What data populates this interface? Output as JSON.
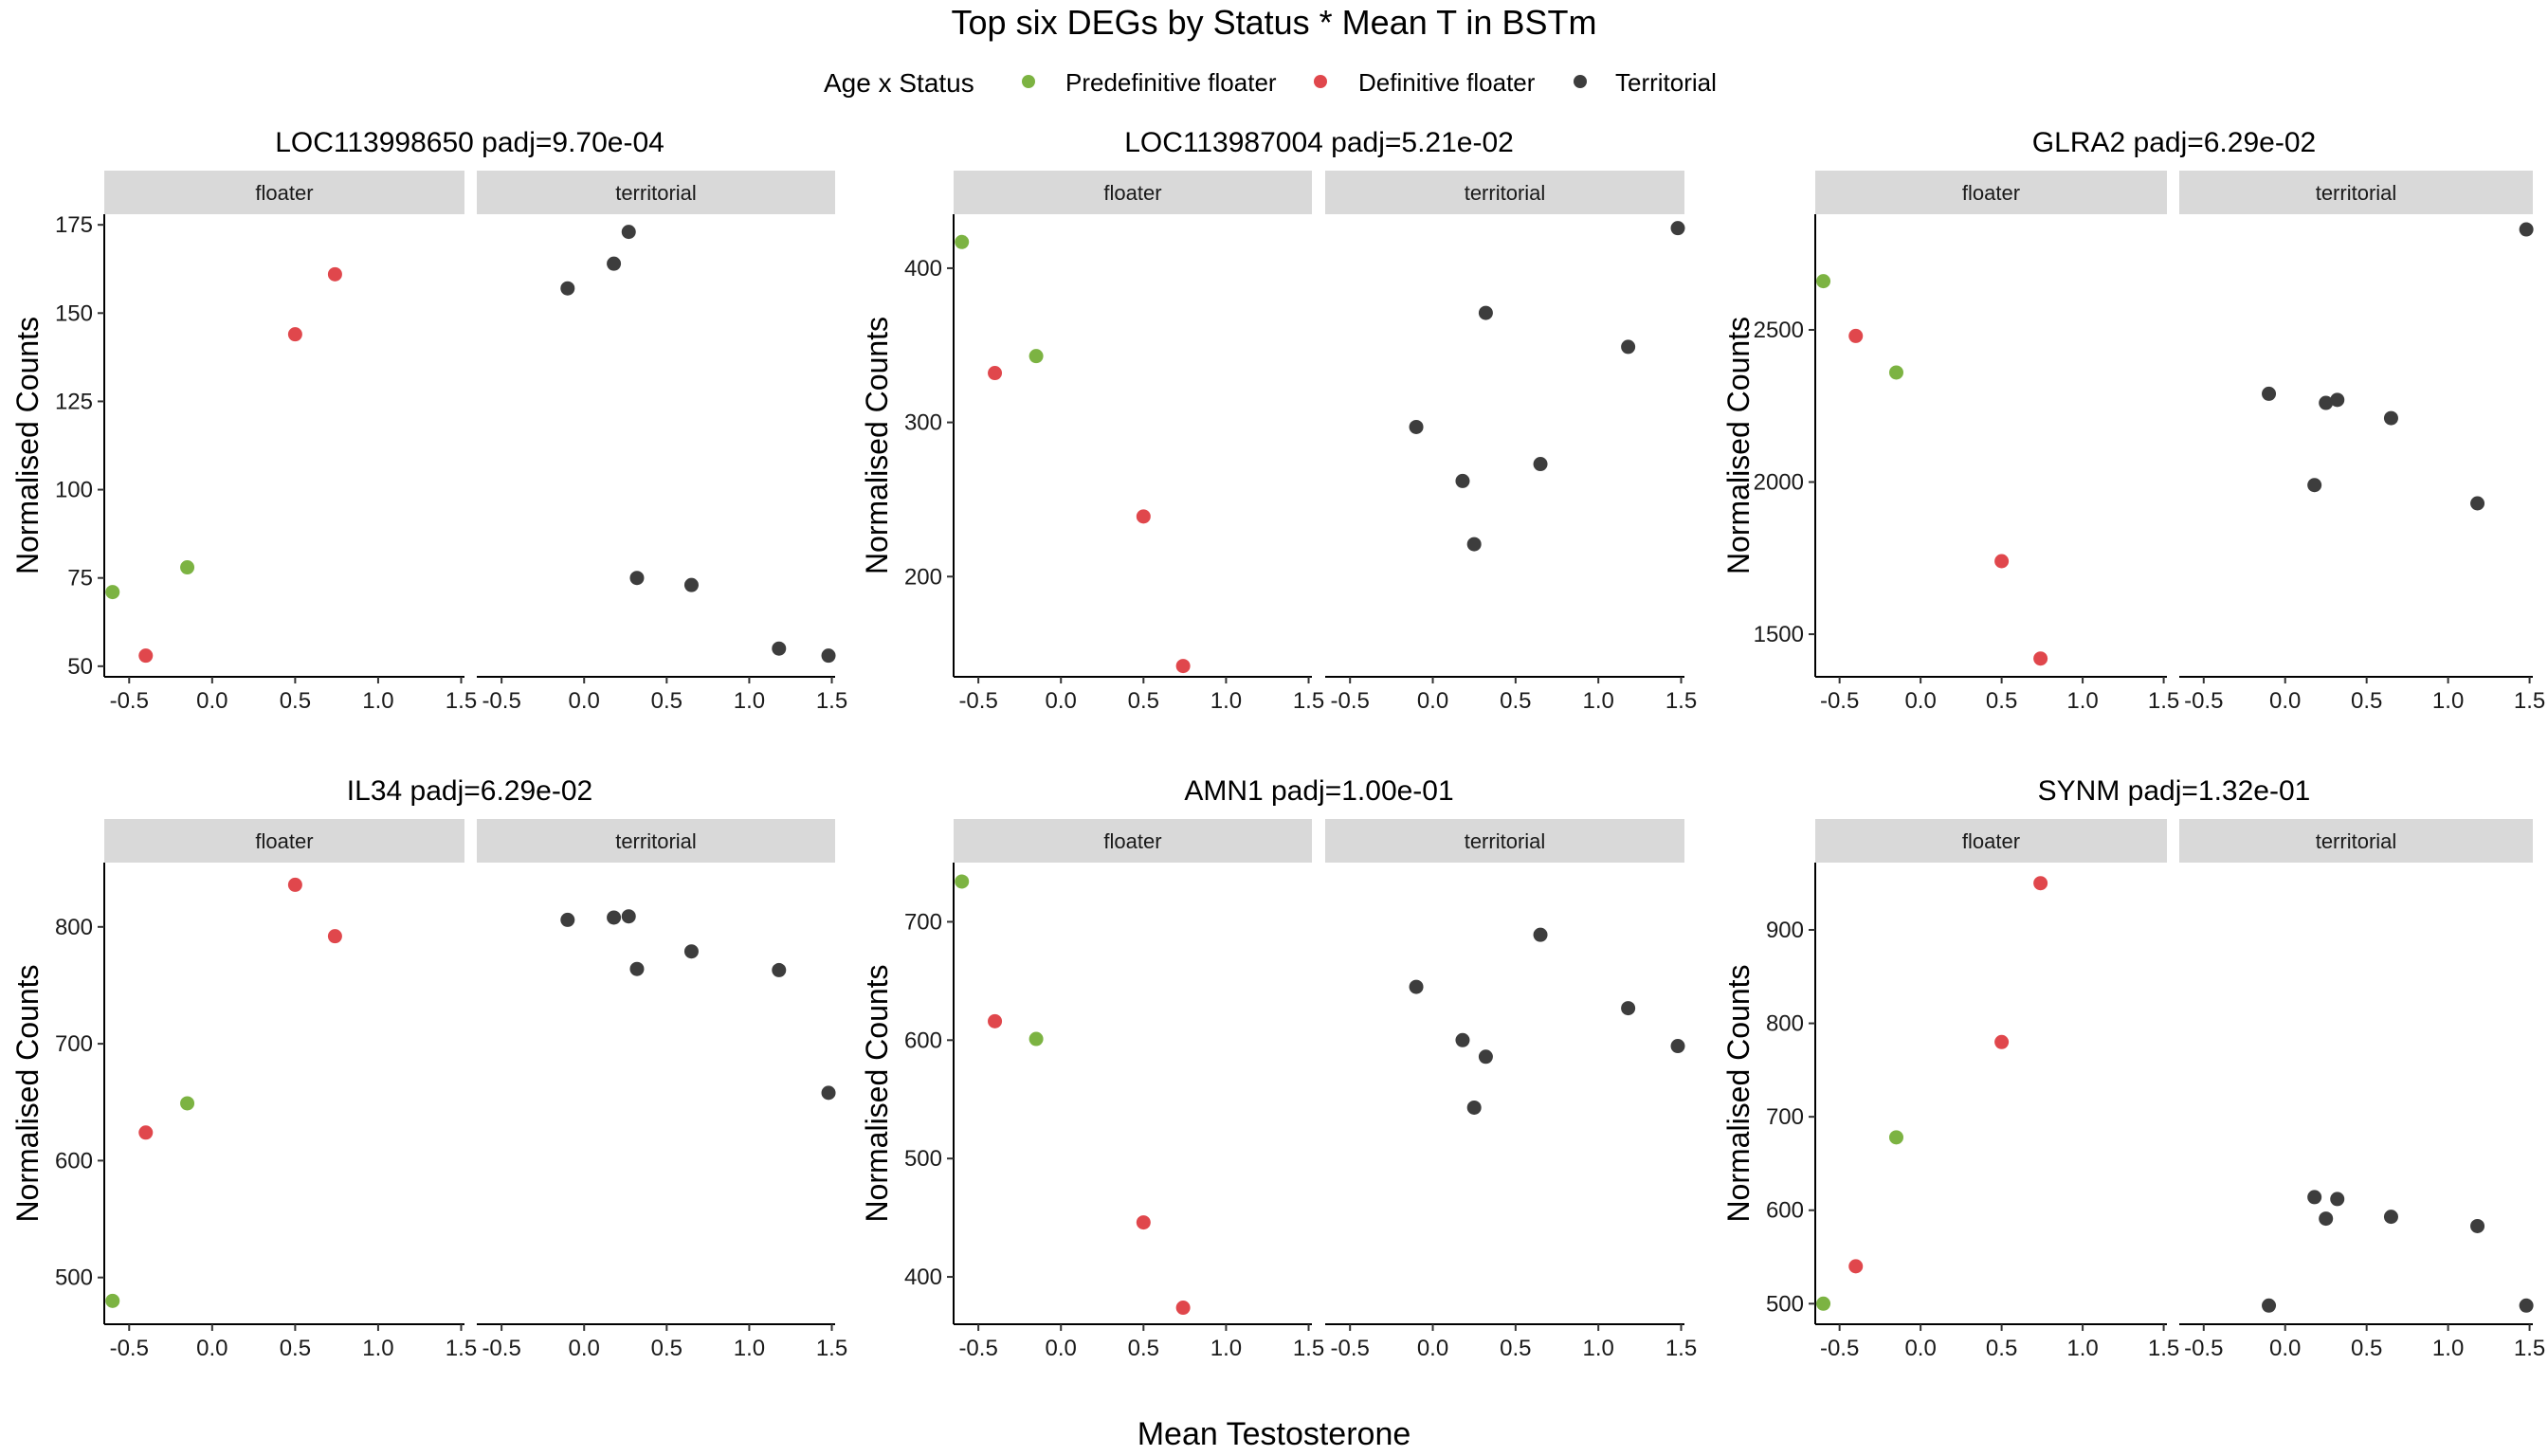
{
  "figure": {
    "title": "Top six DEGs by Status * Mean T in BSTm",
    "xlabel": "Mean Testosterone",
    "ylabel": "Normalised Counts"
  },
  "legend": {
    "title": "Age x Status",
    "position": "top",
    "entries": [
      {
        "label": "Predefinitive floater",
        "color": "#7cb342"
      },
      {
        "label": "Definitive floater",
        "color": "#e0474c"
      },
      {
        "label": "Territorial",
        "color": "#3d3d3d"
      }
    ]
  },
  "facets": [
    "floater",
    "territorial"
  ],
  "x_ticks": [
    "-0.5",
    "0.0",
    "0.5",
    "1.0",
    "1.5"
  ],
  "chart_data": [
    {
      "type": "scatter",
      "title": "LOC113998650 padj=9.70e-04",
      "xlim": [
        -0.65,
        1.52
      ],
      "ylim": [
        47,
        178
      ],
      "yticks": [
        50,
        75,
        100,
        125,
        150,
        175
      ],
      "facets": {
        "floater": [
          {
            "x": -0.6,
            "y": 71,
            "group": "Predefinitive floater"
          },
          {
            "x": -0.4,
            "y": 53,
            "group": "Definitive floater"
          },
          {
            "x": -0.15,
            "y": 78,
            "group": "Predefinitive floater"
          },
          {
            "x": 0.5,
            "y": 144,
            "group": "Definitive floater"
          },
          {
            "x": 0.74,
            "y": 161,
            "group": "Definitive floater"
          }
        ],
        "territorial": [
          {
            "x": -0.1,
            "y": 157,
            "group": "Territorial"
          },
          {
            "x": 0.18,
            "y": 164,
            "group": "Territorial"
          },
          {
            "x": 0.27,
            "y": 173,
            "group": "Territorial"
          },
          {
            "x": 0.32,
            "y": 75,
            "group": "Territorial"
          },
          {
            "x": 0.65,
            "y": 73,
            "group": "Territorial"
          },
          {
            "x": 1.18,
            "y": 55,
            "group": "Territorial"
          },
          {
            "x": 1.48,
            "y": 53,
            "group": "Territorial"
          }
        ]
      }
    },
    {
      "type": "scatter",
      "title": "LOC113987004 padj=5.21e-02",
      "xlim": [
        -0.65,
        1.52
      ],
      "ylim": [
        135,
        435
      ],
      "yticks": [
        200,
        300,
        400
      ],
      "facets": {
        "floater": [
          {
            "x": -0.6,
            "y": 417,
            "group": "Predefinitive floater"
          },
          {
            "x": -0.4,
            "y": 332,
            "group": "Definitive floater"
          },
          {
            "x": -0.15,
            "y": 343,
            "group": "Predefinitive floater"
          },
          {
            "x": 0.5,
            "y": 239,
            "group": "Definitive floater"
          },
          {
            "x": 0.74,
            "y": 142,
            "group": "Definitive floater"
          }
        ],
        "territorial": [
          {
            "x": -0.1,
            "y": 297,
            "group": "Territorial"
          },
          {
            "x": 0.18,
            "y": 262,
            "group": "Territorial"
          },
          {
            "x": 0.25,
            "y": 221,
            "group": "Territorial"
          },
          {
            "x": 0.32,
            "y": 371,
            "group": "Territorial"
          },
          {
            "x": 0.65,
            "y": 273,
            "group": "Territorial"
          },
          {
            "x": 1.18,
            "y": 349,
            "group": "Territorial"
          },
          {
            "x": 1.48,
            "y": 426,
            "group": "Territorial"
          }
        ]
      }
    },
    {
      "type": "scatter",
      "title": "GLRA2 padj=6.29e-02",
      "xlim": [
        -0.65,
        1.52
      ],
      "ylim": [
        1360,
        2880
      ],
      "yticks": [
        1500,
        2000,
        2500
      ],
      "facets": {
        "floater": [
          {
            "x": -0.6,
            "y": 2660,
            "group": "Predefinitive floater"
          },
          {
            "x": -0.4,
            "y": 2480,
            "group": "Definitive floater"
          },
          {
            "x": -0.15,
            "y": 2360,
            "group": "Predefinitive floater"
          },
          {
            "x": 0.5,
            "y": 1740,
            "group": "Definitive floater"
          },
          {
            "x": 0.74,
            "y": 1420,
            "group": "Definitive floater"
          }
        ],
        "territorial": [
          {
            "x": -0.1,
            "y": 2290,
            "group": "Territorial"
          },
          {
            "x": 0.18,
            "y": 1990,
            "group": "Territorial"
          },
          {
            "x": 0.25,
            "y": 2260,
            "group": "Territorial"
          },
          {
            "x": 0.32,
            "y": 2270,
            "group": "Territorial"
          },
          {
            "x": 0.65,
            "y": 2210,
            "group": "Territorial"
          },
          {
            "x": 1.18,
            "y": 1930,
            "group": "Territorial"
          },
          {
            "x": 1.48,
            "y": 2830,
            "group": "Territorial"
          }
        ]
      }
    },
    {
      "type": "scatter",
      "title": "IL34 padj=6.29e-02",
      "xlim": [
        -0.65,
        1.52
      ],
      "ylim": [
        460,
        855
      ],
      "yticks": [
        500,
        600,
        700,
        800
      ],
      "facets": {
        "floater": [
          {
            "x": -0.6,
            "y": 480,
            "group": "Predefinitive floater"
          },
          {
            "x": -0.4,
            "y": 624,
            "group": "Definitive floater"
          },
          {
            "x": -0.15,
            "y": 649,
            "group": "Predefinitive floater"
          },
          {
            "x": 0.5,
            "y": 836,
            "group": "Definitive floater"
          },
          {
            "x": 0.74,
            "y": 792,
            "group": "Definitive floater"
          }
        ],
        "territorial": [
          {
            "x": -0.1,
            "y": 806,
            "group": "Territorial"
          },
          {
            "x": 0.18,
            "y": 808,
            "group": "Territorial"
          },
          {
            "x": 0.27,
            "y": 809,
            "group": "Territorial"
          },
          {
            "x": 0.32,
            "y": 764,
            "group": "Territorial"
          },
          {
            "x": 0.65,
            "y": 779,
            "group": "Territorial"
          },
          {
            "x": 1.18,
            "y": 763,
            "group": "Territorial"
          },
          {
            "x": 1.48,
            "y": 658,
            "group": "Territorial"
          }
        ]
      }
    },
    {
      "type": "scatter",
      "title": "AMN1 padj=1.00e-01",
      "xlim": [
        -0.65,
        1.52
      ],
      "ylim": [
        360,
        750
      ],
      "yticks": [
        400,
        500,
        600,
        700
      ],
      "facets": {
        "floater": [
          {
            "x": -0.6,
            "y": 734,
            "group": "Predefinitive floater"
          },
          {
            "x": -0.4,
            "y": 616,
            "group": "Definitive floater"
          },
          {
            "x": -0.15,
            "y": 601,
            "group": "Predefinitive floater"
          },
          {
            "x": 0.5,
            "y": 446,
            "group": "Definitive floater"
          },
          {
            "x": 0.74,
            "y": 374,
            "group": "Definitive floater"
          }
        ],
        "territorial": [
          {
            "x": -0.1,
            "y": 645,
            "group": "Territorial"
          },
          {
            "x": 0.18,
            "y": 600,
            "group": "Territorial"
          },
          {
            "x": 0.25,
            "y": 543,
            "group": "Territorial"
          },
          {
            "x": 0.32,
            "y": 586,
            "group": "Territorial"
          },
          {
            "x": 0.65,
            "y": 689,
            "group": "Territorial"
          },
          {
            "x": 1.18,
            "y": 627,
            "group": "Territorial"
          },
          {
            "x": 1.48,
            "y": 595,
            "group": "Territorial"
          }
        ]
      }
    },
    {
      "type": "scatter",
      "title": "SYNM padj=1.32e-01",
      "xlim": [
        -0.65,
        1.52
      ],
      "ylim": [
        478,
        972
      ],
      "yticks": [
        500,
        600,
        700,
        800,
        900
      ],
      "facets": {
        "floater": [
          {
            "x": -0.6,
            "y": 500,
            "group": "Predefinitive floater"
          },
          {
            "x": -0.4,
            "y": 540,
            "group": "Definitive floater"
          },
          {
            "x": -0.15,
            "y": 678,
            "group": "Predefinitive floater"
          },
          {
            "x": 0.5,
            "y": 780,
            "group": "Definitive floater"
          },
          {
            "x": 0.74,
            "y": 950,
            "group": "Definitive floater"
          }
        ],
        "territorial": [
          {
            "x": -0.1,
            "y": 498,
            "group": "Territorial"
          },
          {
            "x": 0.18,
            "y": 614,
            "group": "Territorial"
          },
          {
            "x": 0.25,
            "y": 591,
            "group": "Territorial"
          },
          {
            "x": 0.32,
            "y": 612,
            "group": "Territorial"
          },
          {
            "x": 0.65,
            "y": 593,
            "group": "Territorial"
          },
          {
            "x": 1.18,
            "y": 583,
            "group": "Territorial"
          },
          {
            "x": 1.48,
            "y": 498,
            "group": "Territorial"
          }
        ]
      }
    }
  ]
}
